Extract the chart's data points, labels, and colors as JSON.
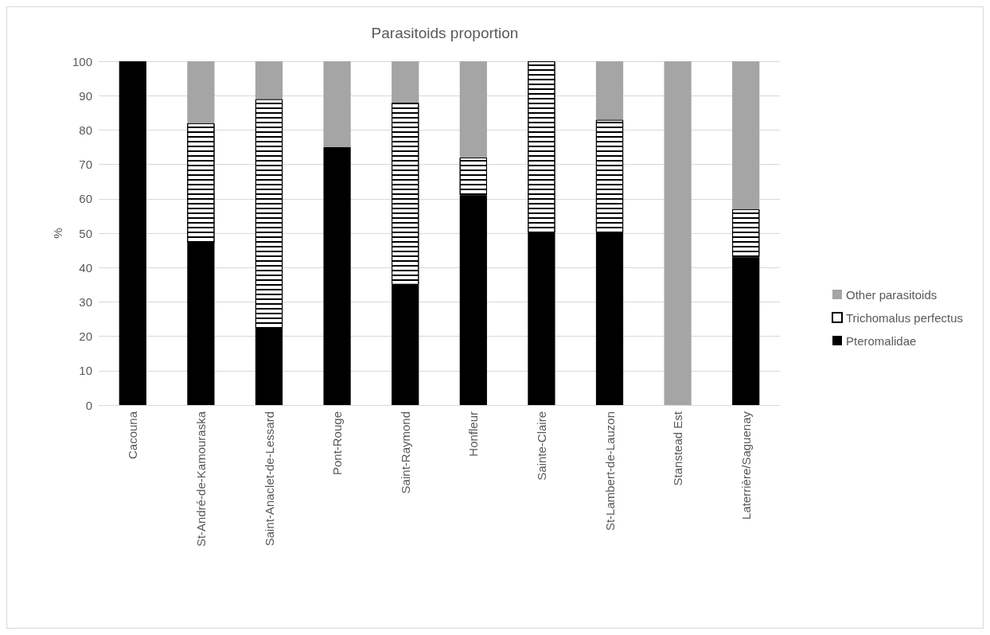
{
  "chart_data": {
    "type": "bar",
    "title": "Parasitoids proportion",
    "ylabel": "%",
    "stacked": true,
    "categories": [
      "Cacouna",
      "St-André-de-Kamouraska",
      "Saint-Anaclet-de-Lessard",
      "Pont-Rouge",
      "Saint-Raymond",
      "Honfleur",
      "Sainte-Claire",
      "St-Lambert-de-Lauzon",
      "Stanstead Est",
      "Laterrière/Saguenay"
    ],
    "series": [
      {
        "name": "Pteromalidae",
        "color": "#000000",
        "values": [
          100,
          47,
          22,
          75,
          35,
          61,
          50,
          50,
          0,
          43
        ]
      },
      {
        "name": "Trichomalus perfectus",
        "color": "#ffffff",
        "values": [
          0,
          35,
          67,
          0,
          53,
          11,
          50,
          33,
          0,
          14
        ]
      },
      {
        "name": "Other parasitoids",
        "color": "#a5a5a5",
        "values": [
          0,
          18,
          11,
          25,
          12,
          28,
          0,
          17,
          100,
          43
        ]
      }
    ],
    "ylim": [
      0,
      100
    ],
    "yticks": [
      0,
      10,
      20,
      30,
      40,
      50,
      60,
      70,
      80,
      90,
      100
    ],
    "grid": "y",
    "legend": "right"
  }
}
